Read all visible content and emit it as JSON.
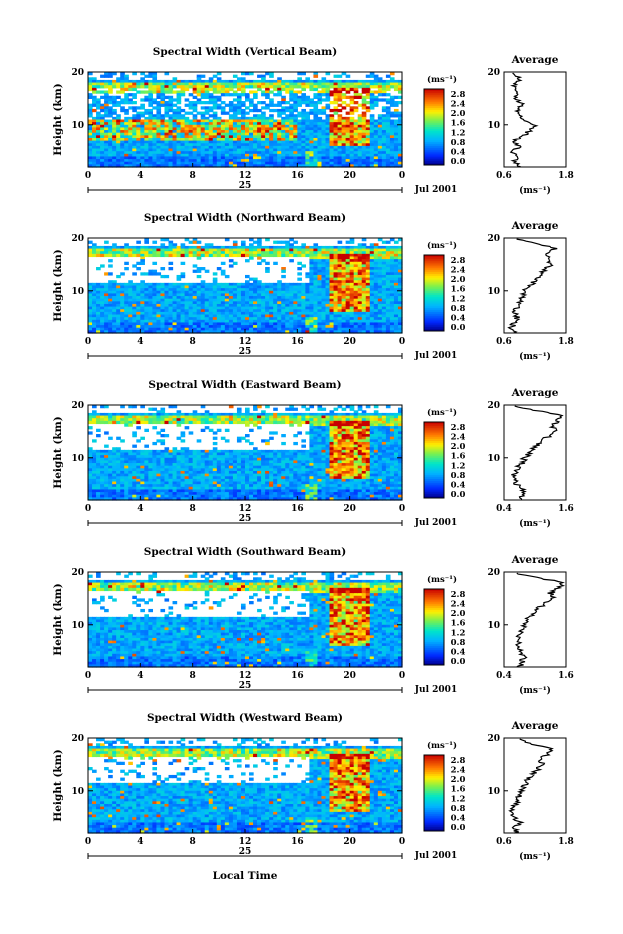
{
  "figure": {
    "x_axis_label": "Local Time",
    "date_label": "Jul 2001",
    "day_label": "25",
    "time_ticks": [
      "0",
      "4",
      "8",
      "12",
      "16",
      "20",
      "0"
    ],
    "height_ticks": [
      "20",
      "10"
    ],
    "y_axis_label": "Height (km)",
    "colorbar_unit": "(ms⁻¹)",
    "colorbar_ticks": [
      "2.8",
      "2.4",
      "2.0",
      "1.6",
      "1.2",
      "0.8",
      "0.4",
      "0.0"
    ],
    "average_title": "Average",
    "average_unit": "(ms⁻¹)"
  },
  "chart_data": [
    {
      "type": "heatmap",
      "title": "Spectral Width (Vertical Beam)",
      "xlabel": "Local Time",
      "ylabel": "Height (km)",
      "x_range_hours": [
        0,
        24
      ],
      "ylim": [
        2,
        20
      ],
      "colorbar": {
        "label": "(ms⁻¹)",
        "range": [
          0.0,
          3.0
        ],
        "ticks": [
          0.0,
          0.4,
          0.8,
          1.2,
          1.6,
          2.0,
          2.4,
          2.8
        ]
      },
      "profile": {
        "title": "Average",
        "xlabel": "(ms⁻¹)",
        "xticks": [
          "0.6",
          "1.8"
        ],
        "xlim": [
          0.6,
          1.8
        ],
        "heights_km": [
          2,
          3,
          4,
          5,
          6,
          7,
          8,
          9,
          10,
          11,
          12,
          13,
          14,
          15,
          16,
          17,
          18,
          19,
          20
        ],
        "values": [
          0.9,
          0.8,
          0.85,
          0.75,
          0.9,
          0.8,
          1.0,
          1.1,
          1.2,
          1.0,
          0.9,
          0.85,
          0.95,
          0.8,
          0.9,
          0.8,
          0.85,
          0.9,
          0.8
        ]
      }
    },
    {
      "type": "heatmap",
      "title": "Spectral Width (Northward Beam)",
      "xlabel": "Local Time",
      "ylabel": "Height (km)",
      "x_range_hours": [
        0,
        24
      ],
      "ylim": [
        2,
        20
      ],
      "colorbar": {
        "label": "(ms⁻¹)",
        "range": [
          0.0,
          3.0
        ],
        "ticks": [
          0.0,
          0.4,
          0.8,
          1.2,
          1.6,
          2.0,
          2.4,
          2.8
        ]
      },
      "profile": {
        "title": "Average",
        "xlabel": "(ms⁻¹)",
        "xticks": [
          "0.6",
          "1.8"
        ],
        "xlim": [
          0.6,
          1.8
        ],
        "heights_km": [
          2,
          3,
          4,
          5,
          6,
          7,
          8,
          9,
          10,
          11,
          12,
          13,
          14,
          15,
          16,
          17,
          18,
          19,
          20
        ],
        "values": [
          0.8,
          0.75,
          0.8,
          0.85,
          0.8,
          0.85,
          0.9,
          0.95,
          1.0,
          1.1,
          1.2,
          1.3,
          1.4,
          1.5,
          1.45,
          1.4,
          1.6,
          1.2,
          0.8
        ]
      }
    },
    {
      "type": "heatmap",
      "title": "Spectral Width (Eastward Beam)",
      "xlabel": "Local Time",
      "ylabel": "Height (km)",
      "x_range_hours": [
        0,
        24
      ],
      "ylim": [
        2,
        20
      ],
      "colorbar": {
        "label": "(ms⁻¹)",
        "range": [
          0.0,
          3.0
        ],
        "ticks": [
          0.0,
          0.4,
          0.8,
          1.2,
          1.6,
          2.0,
          2.4,
          2.8
        ]
      },
      "profile": {
        "title": "Average",
        "xlabel": "(ms⁻¹)",
        "xticks": [
          "0.4",
          "1.6"
        ],
        "xlim": [
          0.4,
          1.6
        ],
        "heights_km": [
          2,
          3,
          4,
          5,
          6,
          7,
          8,
          9,
          10,
          11,
          12,
          13,
          14,
          15,
          16,
          17,
          18,
          19,
          20
        ],
        "values": [
          0.7,
          0.75,
          0.8,
          0.65,
          0.6,
          0.6,
          0.65,
          0.75,
          0.8,
          0.9,
          1.0,
          1.1,
          1.25,
          1.4,
          1.35,
          1.45,
          1.5,
          1.0,
          0.5
        ]
      }
    },
    {
      "type": "heatmap",
      "title": "Spectral Width (Southward Beam)",
      "xlabel": "Local Time",
      "ylabel": "Height (km)",
      "x_range_hours": [
        0,
        24
      ],
      "ylim": [
        2,
        20
      ],
      "colorbar": {
        "label": "(ms⁻¹)",
        "range": [
          0.0,
          3.0
        ],
        "ticks": [
          0.0,
          0.4,
          0.8,
          1.2,
          1.6,
          2.0,
          2.4,
          2.8
        ]
      },
      "profile": {
        "title": "Average",
        "xlabel": "(ms⁻¹)",
        "xticks": [
          "0.4",
          "1.6"
        ],
        "xlim": [
          0.4,
          1.6
        ],
        "heights_km": [
          2,
          3,
          4,
          5,
          6,
          7,
          8,
          9,
          10,
          11,
          12,
          13,
          14,
          15,
          16,
          17,
          18,
          19,
          20
        ],
        "values": [
          0.7,
          0.75,
          0.8,
          0.7,
          0.7,
          0.65,
          0.7,
          0.75,
          0.8,
          0.85,
          0.95,
          1.05,
          1.2,
          1.35,
          1.3,
          1.45,
          1.55,
          1.0,
          0.5
        ]
      }
    },
    {
      "type": "heatmap",
      "title": "Spectral Width (Westward Beam)",
      "xlabel": "Local Time",
      "ylabel": "Height (km)",
      "x_range_hours": [
        0,
        24
      ],
      "ylim": [
        2,
        20
      ],
      "colorbar": {
        "label": "(ms⁻¹)",
        "range": [
          0.0,
          3.0
        ],
        "ticks": [
          0.0,
          0.4,
          0.8,
          1.2,
          1.6,
          2.0,
          2.4,
          2.8
        ]
      },
      "profile": {
        "title": "Average",
        "xlabel": "(ms⁻¹)",
        "xticks": [
          "0.6",
          "1.8"
        ],
        "xlim": [
          0.6,
          1.8
        ],
        "heights_km": [
          2,
          3,
          4,
          5,
          6,
          7,
          8,
          9,
          10,
          11,
          12,
          13,
          14,
          15,
          16,
          17,
          18,
          19,
          20
        ],
        "values": [
          0.85,
          0.8,
          0.9,
          0.8,
          0.75,
          0.8,
          0.85,
          0.9,
          0.95,
          1.0,
          1.05,
          1.15,
          1.25,
          1.35,
          1.3,
          1.45,
          1.5,
          1.1,
          0.8
        ]
      }
    }
  ]
}
